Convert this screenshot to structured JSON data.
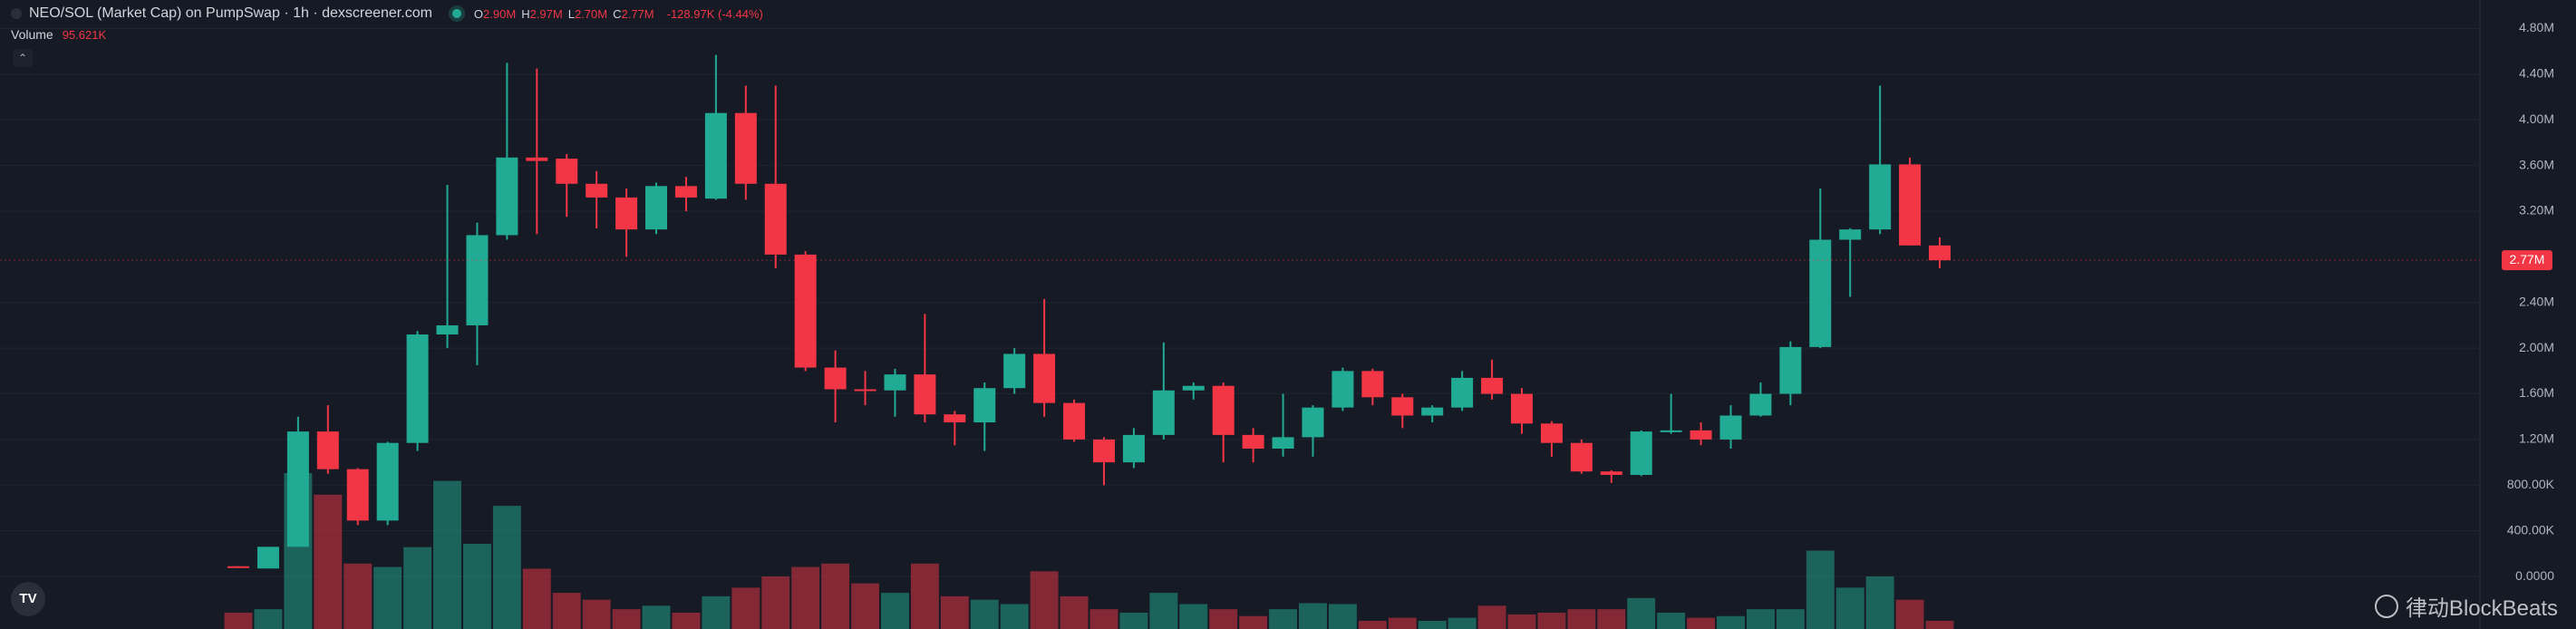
{
  "chart_data": {
    "type": "candlestick",
    "title": "NEO/SOL (Market Cap) on PumpSwap · 1h · dexscreener.com",
    "ohlc_legend": [
      {
        "key": "O",
        "value": "2.90M"
      },
      {
        "key": "H",
        "value": "2.97M"
      },
      {
        "key": "L",
        "value": "2.70M"
      },
      {
        "key": "C",
        "value": "2.77M"
      }
    ],
    "change": "-128.97K (-4.44%)",
    "volume_title": "Volume",
    "volume_value": "95.621K",
    "watermark": "律动BlockBeats",
    "up_color": "#22ab94",
    "down_color": "#f23645",
    "grid": true,
    "ylim": [
      -0.46,
      5.05
    ],
    "yticks": [
      {
        "value": 0,
        "label": "0.0000"
      },
      {
        "value": 0.4,
        "label": "400.00K"
      },
      {
        "value": 0.8,
        "label": "800.00K"
      },
      {
        "value": 1.2,
        "label": "1.20M"
      },
      {
        "value": 1.6,
        "label": "1.60M"
      },
      {
        "value": 2.0,
        "label": "2.00M"
      },
      {
        "value": 2.4,
        "label": "2.40M"
      },
      {
        "value": 3.2,
        "label": "3.20M"
      },
      {
        "value": 3.6,
        "label": "3.60M"
      },
      {
        "value": 4.0,
        "label": "4.00M"
      },
      {
        "value": 4.4,
        "label": "4.40M"
      },
      {
        "value": 4.8,
        "label": "4.80M"
      }
    ],
    "last_price": {
      "value": 2.77,
      "label": "2.77M"
    },
    "open": [
      0.09,
      0.07,
      0.26,
      1.27,
      0.94,
      0.49,
      1.17,
      2.12,
      2.2,
      2.99,
      3.67,
      3.66,
      3.44,
      3.32,
      3.04,
      3.42,
      3.31,
      4.06,
      3.44,
      2.82,
      1.83,
      1.64,
      1.63,
      1.77,
      1.42,
      1.35,
      1.65,
      1.95,
      1.52,
      1.2,
      1.0,
      1.24,
      1.63,
      1.67,
      1.24,
      1.12,
      1.22,
      1.48,
      1.8,
      1.57,
      1.41,
      1.48,
      1.74,
      1.6,
      1.34,
      1.17,
      0.92,
      0.89,
      1.27,
      1.28,
      1.2,
      1.41,
      1.6,
      2.01,
      2.95,
      3.04,
      3.61,
      2.9
    ],
    "high": [
      0.09,
      0.26,
      1.4,
      1.5,
      0.95,
      1.18,
      2.15,
      3.43,
      3.1,
      4.5,
      4.45,
      3.7,
      3.55,
      3.4,
      3.45,
      3.5,
      4.57,
      4.3,
      4.3,
      2.85,
      1.98,
      1.8,
      1.82,
      2.3,
      1.45,
      1.7,
      2.0,
      2.43,
      1.55,
      1.22,
      1.3,
      2.05,
      1.7,
      1.7,
      1.3,
      1.6,
      1.5,
      1.83,
      1.82,
      1.6,
      1.5,
      1.8,
      1.9,
      1.65,
      1.36,
      1.2,
      0.93,
      1.28,
      1.6,
      1.35,
      1.5,
      1.7,
      2.06,
      3.4,
      3.05,
      4.3,
      3.67,
      2.97
    ],
    "low": [
      0.08,
      0.07,
      0.26,
      0.9,
      0.45,
      0.45,
      1.1,
      2.0,
      1.85,
      2.95,
      3.0,
      3.15,
      3.05,
      2.8,
      3.0,
      3.2,
      3.3,
      3.3,
      2.7,
      1.8,
      1.35,
      1.5,
      1.4,
      1.35,
      1.15,
      1.1,
      1.6,
      1.4,
      1.18,
      0.8,
      0.95,
      1.2,
      1.55,
      1.0,
      1.0,
      1.05,
      1.05,
      1.45,
      1.5,
      1.3,
      1.35,
      1.45,
      1.55,
      1.25,
      1.05,
      0.9,
      0.82,
      0.88,
      1.25,
      1.15,
      1.12,
      1.4,
      1.5,
      2.0,
      2.45,
      3.0,
      2.9,
      2.7
    ],
    "close": [
      0.08,
      0.26,
      1.27,
      0.94,
      0.49,
      1.17,
      2.12,
      2.2,
      2.99,
      3.67,
      3.64,
      3.44,
      3.32,
      3.04,
      3.42,
      3.32,
      4.06,
      3.44,
      2.82,
      1.83,
      1.64,
      1.63,
      1.77,
      1.42,
      1.35,
      1.65,
      1.95,
      1.52,
      1.2,
      1.0,
      1.24,
      1.63,
      1.67,
      1.24,
      1.12,
      1.22,
      1.48,
      1.8,
      1.57,
      1.41,
      1.48,
      1.74,
      1.6,
      1.34,
      1.17,
      0.92,
      0.89,
      1.27,
      1.28,
      1.2,
      1.41,
      1.6,
      2.01,
      2.95,
      3.04,
      3.61,
      2.9,
      2.77
    ],
    "volume": [
      190,
      230,
      1810,
      1560,
      760,
      720,
      950,
      1720,
      990,
      1430,
      700,
      420,
      340,
      230,
      270,
      190,
      380,
      480,
      610,
      720,
      760,
      530,
      420,
      760,
      380,
      340,
      290,
      670,
      380,
      230,
      190,
      420,
      290,
      230,
      150,
      230,
      300,
      290,
      95,
      130,
      95,
      130,
      270,
      170,
      190,
      230,
      230,
      360,
      190,
      130,
      150,
      230,
      230,
      910,
      480,
      610,
      340,
      95.621
    ]
  }
}
